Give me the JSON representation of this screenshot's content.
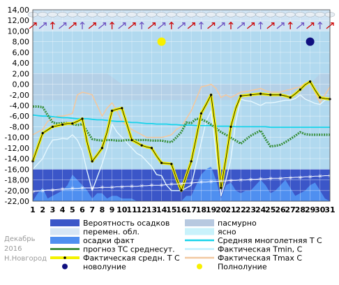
{
  "meta": {
    "month": "Декабрь",
    "year": "2016",
    "city": "Н.Новгород"
  },
  "colors": {
    "precip_prob": "#3b56c8",
    "precip_actual": "#4f8ff0",
    "variable": "#d7e6f5",
    "overcast": "#b7c9e0",
    "clear": "#c9f2fb",
    "sky_bg": "#b1d9ef",
    "normal": "#18d3ea",
    "forecast": "#1d7a1d",
    "actual": "#f4f200",
    "actual_line": "#000000",
    "tmin": "#e6f8ff",
    "tmax": "#f2c8a0",
    "new_moon": "#101080",
    "full_moon": "#f8f000"
  },
  "chart_data": {
    "type": "line",
    "xlabel": "",
    "ylabel": "",
    "ylim": [
      -22,
      14
    ],
    "y_ticks": [
      "-22,00",
      "-20,00",
      "-18,00",
      "-16,00",
      "-14,00",
      "-12,00",
      "-10,00",
      "-8,00",
      "-6,00",
      "-4,00",
      "-2,00",
      "0,00",
      "2,00",
      "4,00",
      "6,00",
      "8,00",
      "10,00",
      "12,00",
      "14,00"
    ],
    "x_ticks": [
      "1",
      "2",
      "3",
      "4",
      "5",
      "6",
      "7",
      "8",
      "9",
      "10",
      "11",
      "12",
      "13",
      "14",
      "15",
      "16",
      "17",
      "18",
      "19",
      "20",
      "21",
      "22",
      "23",
      "24",
      "25",
      "26",
      "27",
      "28",
      "29",
      "30",
      "31"
    ],
    "grid": true,
    "x": [
      1,
      1.5,
      2,
      2.5,
      3,
      3.5,
      4,
      4.5,
      5,
      5.5,
      6,
      6.5,
      7,
      7.5,
      8,
      8.5,
      9,
      9.5,
      10,
      10.5,
      11,
      11.5,
      12,
      12.5,
      13,
      13.5,
      14,
      14.5,
      15,
      15.5,
      16,
      16.5,
      17,
      17.5,
      18,
      18.5,
      19,
      19.5,
      20,
      20.5,
      21,
      21.5,
      22,
      22.5,
      23,
      23.5,
      24,
      24.5,
      25,
      25.5,
      26,
      26.5,
      27,
      27.5,
      28,
      28.5,
      29,
      29.5,
      30,
      30.5,
      31
    ],
    "series": [
      {
        "name": "Фактическая средн. Т С",
        "values": [
          -14.5,
          -11.8,
          -9.2,
          -8.6,
          -8.0,
          -7.8,
          -7.6,
          -7.4,
          -7.4,
          -7.0,
          -6.5,
          -11.0,
          -14.5,
          -13.3,
          -12.0,
          -9.0,
          -5.0,
          -4.7,
          -4.5,
          -7.5,
          -10.5,
          -11.0,
          -11.5,
          -11.8,
          -12.0,
          -13.5,
          -14.8,
          -14.9,
          -15.0,
          -17.7,
          -20.0,
          -17.2,
          -14.5,
          -10.1,
          -5.5,
          -3.8,
          -2.0,
          -9.0,
          -19.5,
          -14.0,
          -8.0,
          -4.5,
          -2.2,
          -2.1,
          -2.0,
          -1.9,
          -1.8,
          -1.9,
          -2.0,
          -2.0,
          -2.0,
          -2.2,
          -2.5,
          -1.8,
          -1.0,
          -0.1,
          0.5,
          -1.1,
          -2.5,
          -2.7,
          -2.8
        ]
      },
      {
        "name": "прогноз ТС среднесут.",
        "values": [
          -4.2,
          -4.2,
          -4.3,
          -5.8,
          -7.2,
          -7.4,
          -7.3,
          -7.3,
          -7.5,
          -7.7,
          -7.5,
          -8.9,
          -10.3,
          -10.5,
          -10.6,
          -10.5,
          -10.5,
          -10.6,
          -10.6,
          -10.5,
          -10.5,
          -10.5,
          -10.5,
          -10.5,
          -10.6,
          -10.6,
          -10.6,
          -10.8,
          -10.9,
          -10.0,
          -9.0,
          -7.2,
          -7.3,
          -6.5,
          -6.6,
          -7.0,
          -7.6,
          -8.3,
          -9.0,
          -9.5,
          -10.1,
          -10.6,
          -11.2,
          -10.4,
          -9.7,
          -9.2,
          -8.7,
          -10.3,
          -11.7,
          -11.6,
          -11.4,
          -10.9,
          -10.3,
          -9.7,
          -9.0,
          -9.4,
          -9.5,
          -9.5,
          -9.5,
          -9.5,
          -9.5
        ]
      },
      {
        "name": "Средняя многолетняя Т С",
        "values": [
          -5.8,
          -5.9,
          -6.0,
          -6.0,
          -6.1,
          -6.2,
          -6.3,
          -6.3,
          -6.4,
          -6.5,
          -6.5,
          -6.5,
          -6.6,
          -6.7,
          -6.7,
          -6.8,
          -6.9,
          -7.0,
          -7.0,
          -7.1,
          -7.2,
          -7.2,
          -7.3,
          -7.4,
          -7.4,
          -7.5,
          -7.5,
          -7.5,
          -7.6,
          -7.6,
          -7.7,
          -7.7,
          -7.7,
          -7.8,
          -7.8,
          -7.8,
          -7.8,
          -7.9,
          -7.9,
          -7.9,
          -7.9,
          -8.0,
          -8.0,
          -8.0,
          -8.0,
          -8.0,
          -8.0,
          -8.0,
          -8.1,
          -8.1,
          -8.1,
          -8.1,
          -8.1,
          -8.1,
          -8.1,
          -8.1,
          -8.1,
          -8.1,
          -8.1,
          -8.1,
          -8.1
        ]
      },
      {
        "name": "Фактическая Tmin, С",
        "values": [
          -16.0,
          -15.0,
          -14.0,
          -12.0,
          -10.5,
          -10.4,
          -10.2,
          -10.3,
          -9.5,
          -10.5,
          -12.5,
          -16.5,
          -20.0,
          -17.5,
          -15.0,
          -12.0,
          -7.5,
          -9.0,
          -10.0,
          -11.0,
          -12.0,
          -13.0,
          -13.5,
          -14.5,
          -15.5,
          -17.0,
          -17.2,
          -19.0,
          -20.0,
          -20.0,
          -20.0,
          -19.5,
          -19.0,
          -15.0,
          -11.0,
          -7.0,
          -5.0,
          -13.0,
          -21.0,
          -18.0,
          -14.0,
          -7.0,
          -2.8,
          -3.1,
          -3.2,
          -3.6,
          -4.0,
          -3.5,
          -3.5,
          -3.4,
          -3.2,
          -3.0,
          -3.0,
          -2.7,
          -2.0,
          -2.8,
          -3.2,
          -3.6,
          -3.8,
          -3.0,
          -2.8
        ]
      },
      {
        "name": "Фактическая Tmax С",
        "values": [
          -9.5,
          -9.0,
          -8.5,
          -7.0,
          -6.5,
          -6.0,
          -6.0,
          -5.8,
          -5.5,
          -2.0,
          -1.5,
          -1.7,
          -2.0,
          -4.0,
          -6.0,
          -4.5,
          -3.5,
          -5.0,
          -7.0,
          -7.8,
          -8.5,
          -9.0,
          -9.5,
          -10.0,
          -10.0,
          -10.0,
          -10.0,
          -9.8,
          -9.5,
          -8.5,
          -8.0,
          -6.5,
          -5.0,
          -2.8,
          -0.5,
          -0.3,
          0.0,
          -0.8,
          -2.5,
          -2.0,
          -2.5,
          -2.0,
          -1.5,
          -1.4,
          -1.2,
          -1.0,
          -0.8,
          -1.2,
          -1.5,
          -1.5,
          -1.5,
          -1.2,
          -1.0,
          -0.7,
          -0.5,
          0.2,
          0.5,
          -1.5,
          -3.5,
          -2.0,
          -0.5
        ]
      }
    ],
    "precip_probability_percent": [
      20,
      20,
      20,
      20,
      20,
      20,
      20,
      20,
      20,
      20,
      20,
      20,
      20,
      20,
      20,
      20,
      20,
      20,
      20,
      20,
      20,
      20,
      20,
      20,
      20,
      20,
      20,
      20,
      20,
      20,
      20,
      20,
      20,
      20,
      20,
      20,
      20,
      20,
      20,
      20,
      20,
      20,
      20,
      20,
      20,
      20,
      20,
      20,
      20,
      20,
      20,
      20,
      20,
      20,
      20,
      20,
      20,
      20,
      20,
      20,
      20
    ],
    "precip_actual_ylim_values": [
      -22.0,
      -20.5,
      -19.5,
      -21.5,
      -21.0,
      -20.5,
      -20.0,
      -19.0,
      -17.0,
      -18.0,
      -19.0,
      -20.0,
      -21.5,
      -20.5,
      -20.5,
      -21.5,
      -21.0,
      -21.0,
      -21.5,
      -21.5,
      -21.5,
      -22.0,
      -22.0,
      -22.0,
      -22.0,
      -22.0,
      -22.0,
      -22.0,
      -22.0,
      -22.0,
      -22.0,
      -21.0,
      -21.0,
      -19.0,
      -17.0,
      -16.0,
      -15.5,
      -18.0,
      -21.5,
      -19.0,
      -18.5,
      -20.0,
      -20.5,
      -20.0,
      -20.0,
      -19.0,
      -18.0,
      -19.0,
      -20.5,
      -20.0,
      -19.0,
      -18.0,
      -19.5,
      -21.0,
      -20.5,
      -20.0,
      -19.0,
      -18.5,
      -20.0,
      -21.5,
      -22.0
    ],
    "wind_row_note": "",
    "snowflake_trace_values": [
      -20.2,
      -20.1,
      -20.0,
      -19.9,
      -19.9,
      -19.8,
      -19.7,
      -19.7,
      -19.6,
      -19.6,
      -19.5,
      -19.5,
      -19.5,
      -19.5,
      -19.4,
      -19.4,
      -19.4,
      -19.3,
      -19.3,
      -19.2,
      -19.2,
      -19.2,
      -19.1,
      -19.1,
      -19.0,
      -19.0,
      -19.0,
      -18.9,
      -18.8,
      -18.8,
      -18.7,
      -18.6,
      -18.6,
      -18.5,
      -18.4,
      -18.4,
      -18.3,
      -18.3,
      -18.2,
      -18.2,
      -18.1,
      -18.1,
      -18.0,
      -18.0,
      -17.9,
      -17.9,
      -17.8,
      -17.8,
      -17.7,
      -17.7,
      -17.7,
      -17.6,
      -17.6,
      -17.5,
      -17.5,
      -17.4,
      -17.4,
      -17.3,
      -17.3,
      -17.2,
      -17.2
    ],
    "moon": {
      "full_moon_day": 14,
      "new_moon_day": 29,
      "y": 8.0
    },
    "legend": [
      {
        "label": "Вероятность осадков",
        "swatch": "precip_prob_box"
      },
      {
        "label": "перемен. обл.",
        "swatch": "variable_box"
      },
      {
        "label": "осадки факт",
        "swatch": "precip_actual_box"
      },
      {
        "label": "прогноз ТС среднесут.",
        "swatch": "forecast_line"
      },
      {
        "label": "Фактическая средн. Т С",
        "swatch": "actual_line"
      },
      {
        "label": "новолуние",
        "swatch": "new_moon_dot"
      },
      {
        "label": "пасмурно",
        "swatch": "overcast_box"
      },
      {
        "label": "ясно",
        "swatch": "clear_box"
      },
      {
        "label": "Средняя многолетняя Т С",
        "swatch": "normal_line"
      },
      {
        "label": "Фактическая Tmin, С",
        "swatch": "tmin_line"
      },
      {
        "label": "Фактическая Tmax С",
        "swatch": "tmax_line"
      },
      {
        "label": "Полнолуние",
        "swatch": "full_moon_dot"
      }
    ]
  }
}
